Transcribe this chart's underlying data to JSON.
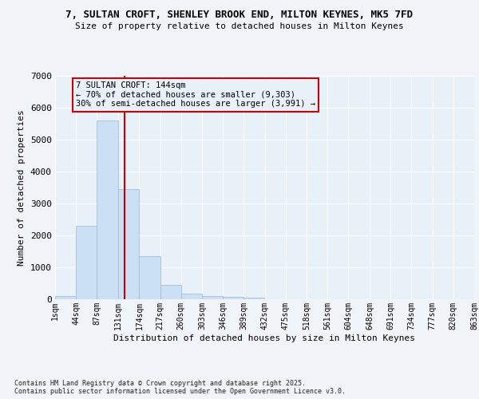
{
  "title1": "7, SULTAN CROFT, SHENLEY BROOK END, MILTON KEYNES, MK5 7FD",
  "title2": "Size of property relative to detached houses in Milton Keynes",
  "xlabel": "Distribution of detached houses by size in Milton Keynes",
  "ylabel": "Number of detached properties",
  "bar_edges": [
    1,
    44,
    87,
    131,
    174,
    217,
    260,
    303,
    346,
    389,
    432,
    475,
    518,
    561,
    604,
    648,
    691,
    734,
    777,
    820,
    863
  ],
  "bar_heights": [
    100,
    2300,
    5600,
    3450,
    1350,
    450,
    175,
    100,
    75,
    50,
    0,
    0,
    0,
    0,
    0,
    0,
    0,
    0,
    0,
    0
  ],
  "bar_color": "#cce0f5",
  "bar_edge_color": "#aabdd8",
  "ylim_max": 7000,
  "yticks": [
    0,
    1000,
    2000,
    3000,
    4000,
    5000,
    6000,
    7000
  ],
  "vline_x": 144,
  "vline_color": "#cc0000",
  "annot_line1": "7 SULTAN CROFT: 144sqm",
  "annot_line2": "← 70% of detached houses are smaller (9,303)",
  "annot_line3": "30% of semi-detached houses are larger (3,991) →",
  "annot_box_edgecolor": "#cc0000",
  "plot_bg_color": "#e8f0f8",
  "fig_bg_color": "#f0f4f8",
  "grid_color": "#ffffff",
  "footnote": "Contains HM Land Registry data © Crown copyright and database right 2025.\nContains public sector information licensed under the Open Government Licence v3.0.",
  "tick_labels": [
    "1sqm",
    "44sqm",
    "87sqm",
    "131sqm",
    "174sqm",
    "217sqm",
    "260sqm",
    "303sqm",
    "346sqm",
    "389sqm",
    "432sqm",
    "475sqm",
    "518sqm",
    "561sqm",
    "604sqm",
    "648sqm",
    "691sqm",
    "734sqm",
    "777sqm",
    "820sqm",
    "863sqm"
  ],
  "title1_fontsize": 9,
  "title2_fontsize": 8,
  "xlabel_fontsize": 8,
  "ylabel_fontsize": 8,
  "tick_fontsize": 7,
  "ytick_fontsize": 8,
  "annot_fontsize": 7.5,
  "footnote_fontsize": 6
}
